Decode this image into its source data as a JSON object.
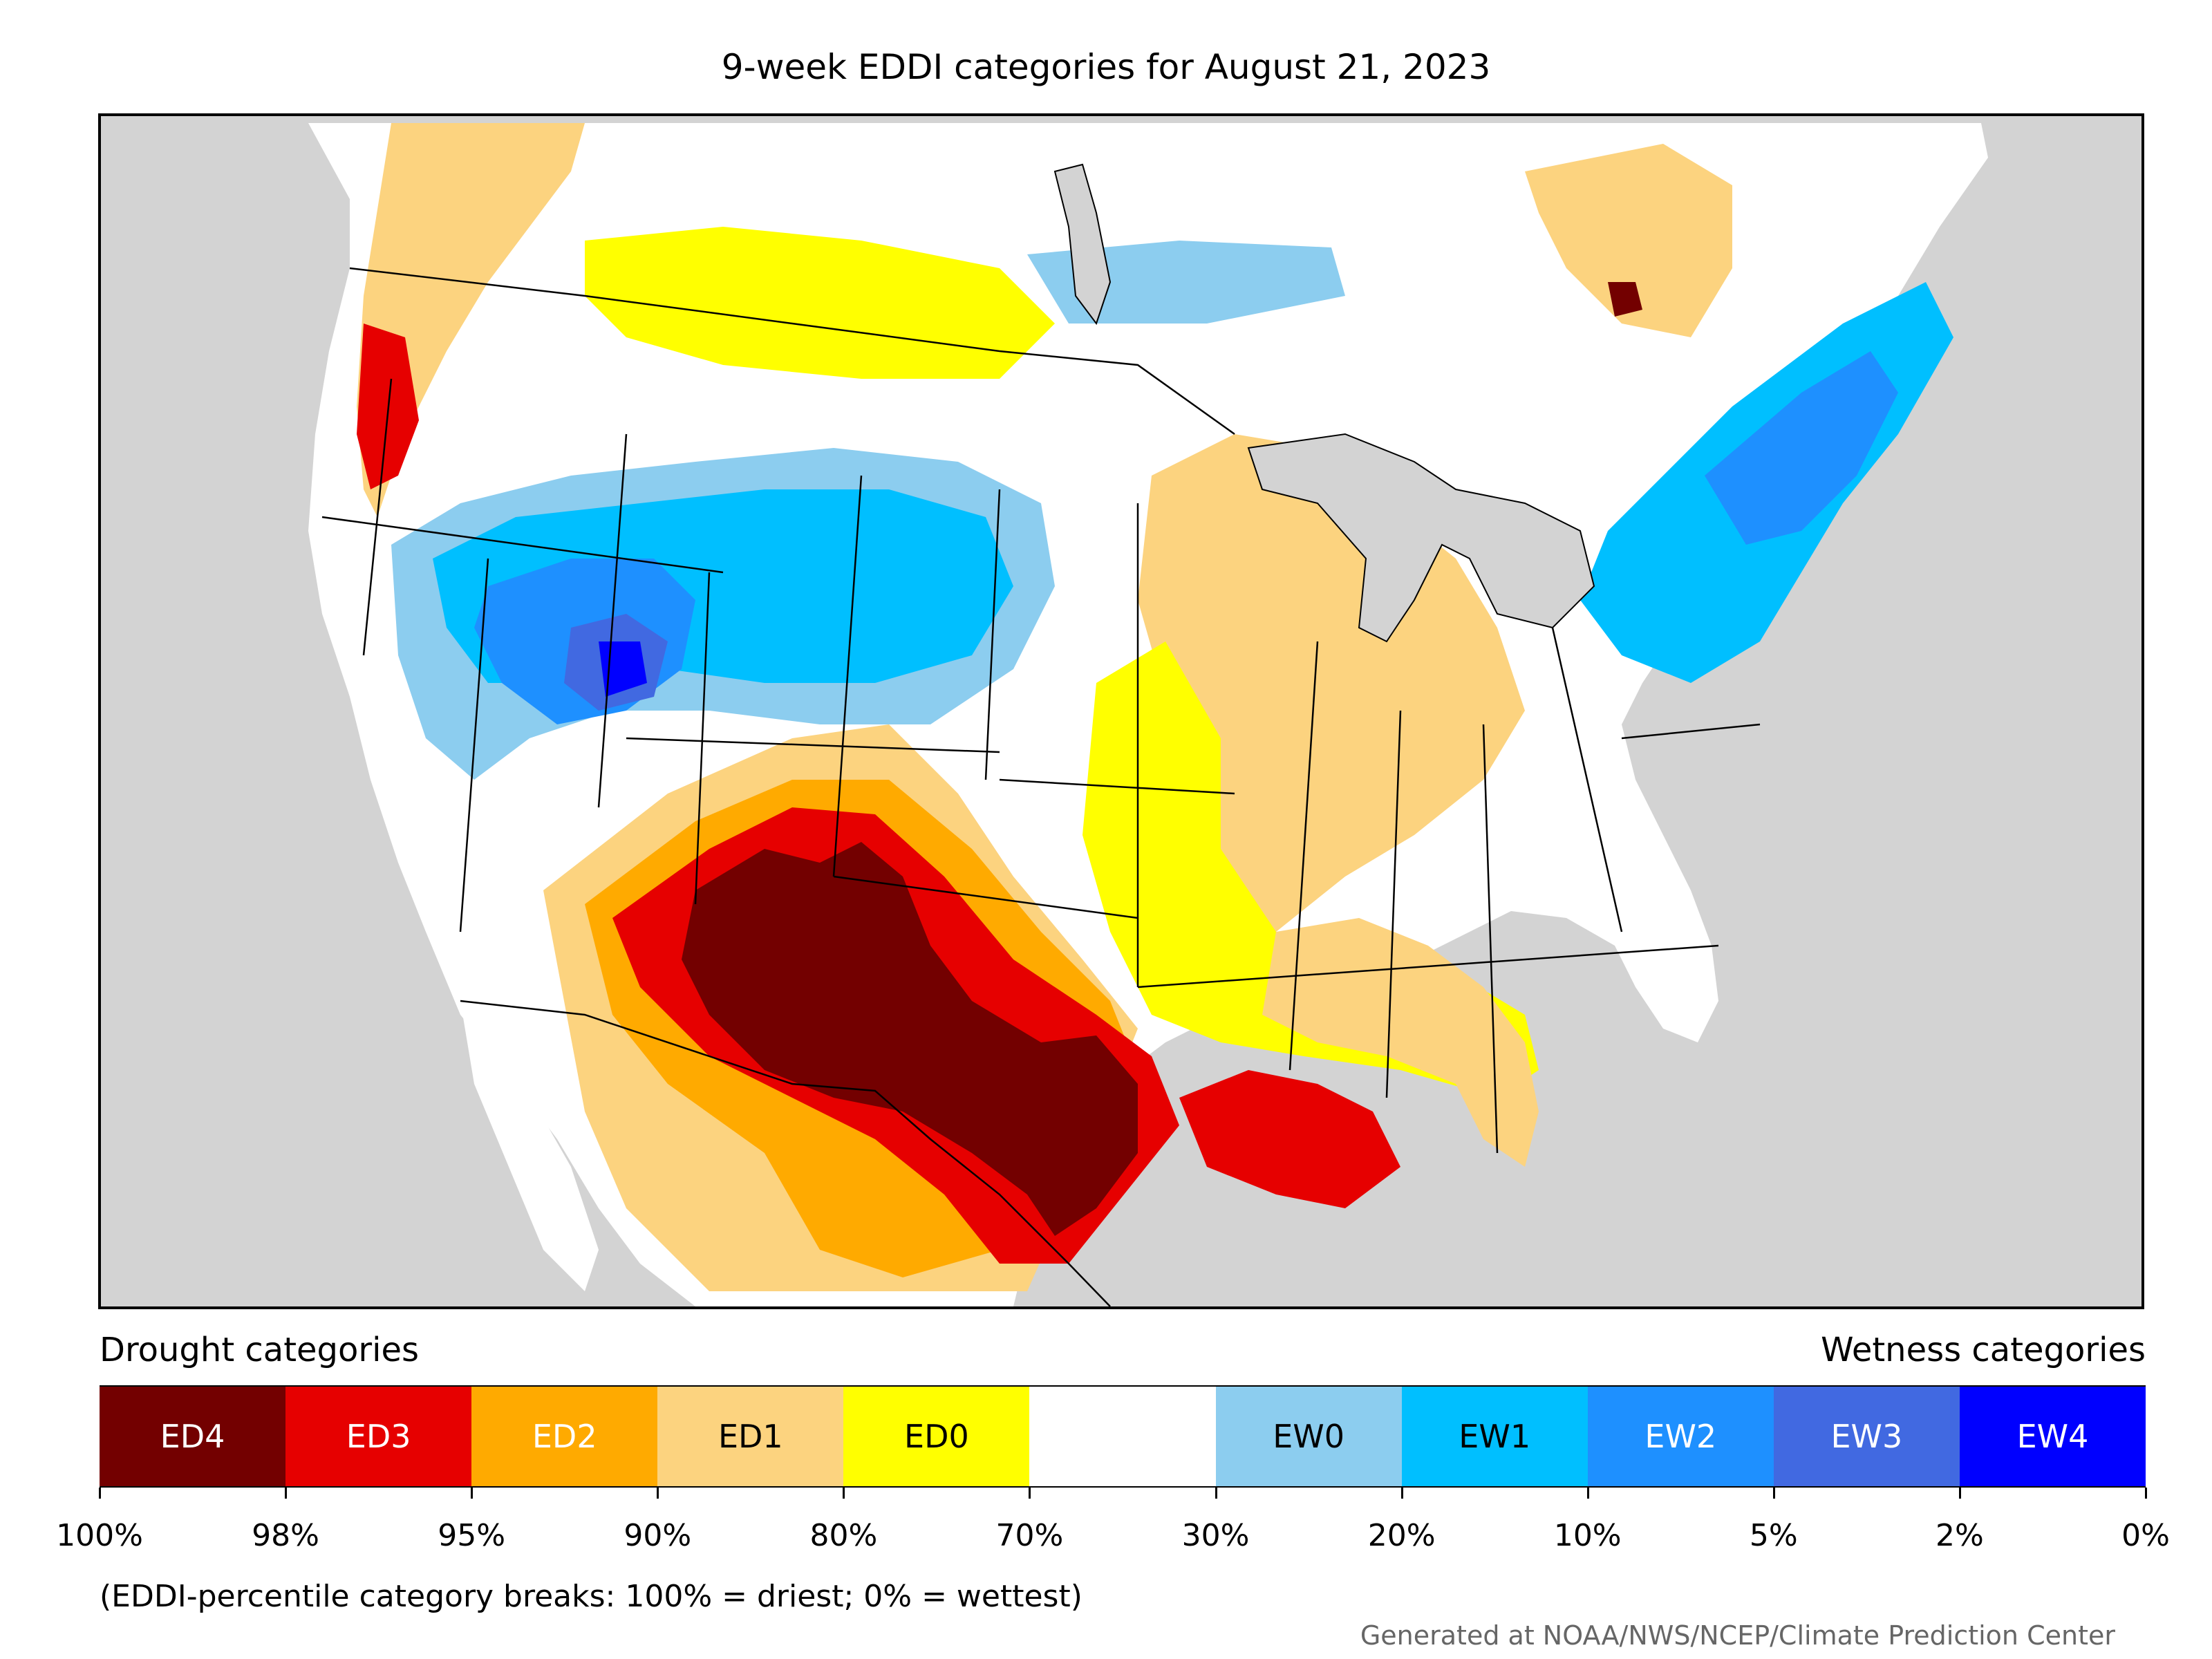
{
  "title": "9-week EDDI categories for August 21, 2023",
  "map": {
    "background_color": "#d3d3d3",
    "land_color": "#ffffff",
    "boundary_color": "#000000"
  },
  "legend": {
    "drought_caption": "Drought categories",
    "wetness_caption": "Wetness categories",
    "categories": [
      {
        "label": "ED4",
        "color": "#730000",
        "text_color": "#ffffff"
      },
      {
        "label": "ED3",
        "color": "#e60000",
        "text_color": "#ffffff"
      },
      {
        "label": "ED2",
        "color": "#ffaa00",
        "text_color": "#ffffff"
      },
      {
        "label": "ED1",
        "color": "#fcd37f",
        "text_color": "#000000"
      },
      {
        "label": "ED0",
        "color": "#ffff00",
        "text_color": "#000000"
      },
      {
        "label": "",
        "color": "#ffffff",
        "text_color": "#000000"
      },
      {
        "label": "EW0",
        "color": "#8ccdef",
        "text_color": "#000000"
      },
      {
        "label": "EW1",
        "color": "#00bfff",
        "text_color": "#000000"
      },
      {
        "label": "EW2",
        "color": "#1e90ff",
        "text_color": "#ffffff"
      },
      {
        "label": "EW3",
        "color": "#4169e1",
        "text_color": "#ffffff"
      },
      {
        "label": "EW4",
        "color": "#0000ff",
        "text_color": "#ffffff"
      }
    ],
    "breaks": [
      "100%",
      "98%",
      "95%",
      "90%",
      "80%",
      "70%",
      "30%",
      "20%",
      "10%",
      "5%",
      "2%",
      "0%"
    ],
    "note": "(EDDI-percentile category breaks: 100% = driest; 0% = wettest)"
  },
  "credit": "Generated at NOAA/NWS/NCEP/Climate Prediction Center"
}
